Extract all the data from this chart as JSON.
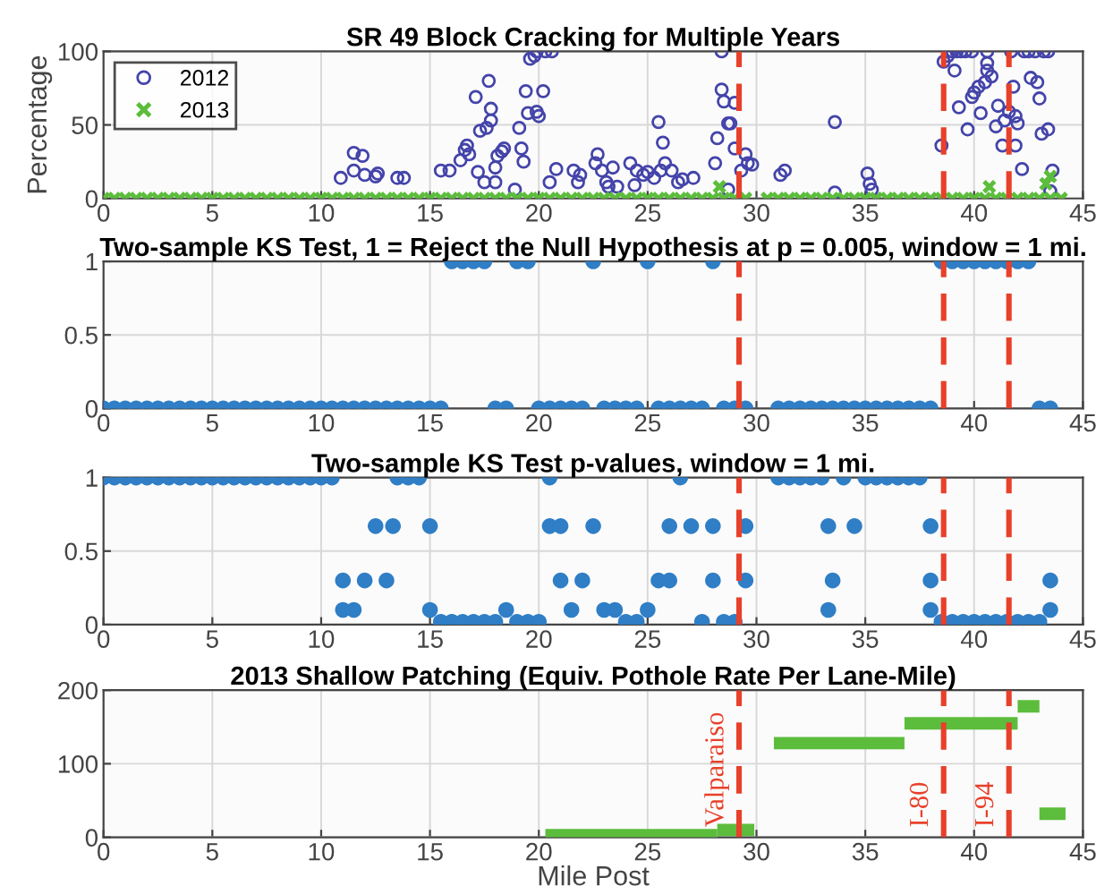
{
  "chart_data": [
    {
      "type": "scatter",
      "title": "SR 49 Block Cracking for Multiple Years",
      "ylabel": "Percentage",
      "xlim": [
        0,
        45
      ],
      "xticks": [
        0,
        5,
        10,
        15,
        20,
        25,
        30,
        35,
        40,
        45
      ],
      "ylim": [
        0,
        100
      ],
      "yticks": [
        0,
        50,
        100
      ],
      "grid": true,
      "legend": "top left",
      "ref_lines": [
        {
          "axis": "x",
          "value": 29.2,
          "color": "#e8402a",
          "line_style": "dashed"
        },
        {
          "axis": "x",
          "value": 38.6,
          "color": "#e8402a",
          "line_style": "dashed"
        },
        {
          "axis": "x",
          "value": 41.6,
          "color": "#e8402a",
          "line_style": "dashed"
        }
      ],
      "series": [
        {
          "name": "2012",
          "color": "#4444aa",
          "marker": "circle",
          "x": [
            10.9,
            11.5,
            11.9,
            11.5,
            12,
            12.5,
            12.6,
            13.5,
            13.8,
            15.5,
            15.9,
            16.4,
            16.6,
            16.7,
            16.8,
            17.1,
            17.3,
            17.6,
            17.7,
            17.8,
            17.8,
            17.5,
            17.2,
            18.0,
            18.1,
            18.3,
            18.4,
            18,
            18.9,
            19.1,
            19.2,
            19.3,
            19.4,
            19.5,
            19.6,
            19.8,
            19.9,
            20.2,
            20,
            19.9,
            20.3,
            20.6,
            20.5,
            20.8,
            21.6,
            21.8,
            21.9,
            22.6,
            22.7,
            22.9,
            23.1,
            23.2,
            23.4,
            23.6,
            24.2,
            24.4,
            24.5,
            24.8,
            25,
            25.3,
            25.5,
            25.6,
            25.8,
            25.7,
            26.1,
            26.4,
            26.6,
            27.1,
            28.1,
            28.2,
            28.4,
            28.4,
            28.5,
            28.7,
            28.8,
            28.7,
            29,
            29,
            29.3,
            29.5,
            29.6,
            29.8,
            31.1,
            31.3,
            33.6,
            33.6,
            35.1,
            35.2,
            35.3,
            38.5,
            38.6,
            38.8,
            39,
            39.1,
            39.2,
            39.4,
            39.6,
            39.9,
            39.3,
            39.7,
            39.9,
            40,
            40.2,
            40.3,
            40.5,
            40.6,
            40.6,
            40.6,
            40.8,
            41,
            41.1,
            41.3,
            41.4,
            41.6,
            41.7,
            41.8,
            41.9,
            41.9,
            42,
            42.2,
            42.3,
            42.5,
            42.8,
            42.6,
            42.9,
            43,
            43.2,
            43.4,
            43.1,
            43.4,
            43.5,
            43.6
          ],
          "values": [
            14,
            31,
            29,
            19,
            16,
            15,
            17,
            14,
            14,
            19,
            19,
            26,
            33,
            36,
            30,
            69,
            46,
            48,
            80,
            61,
            53,
            11,
            18,
            21,
            29,
            32,
            34,
            11,
            6,
            48,
            34,
            25,
            73,
            58,
            95,
            97,
            100,
            73,
            56,
            59,
            100,
            100,
            11,
            20,
            19,
            11,
            16,
            24,
            30,
            19,
            11,
            8,
            21,
            8,
            24,
            9,
            19,
            16,
            18,
            14,
            52,
            19,
            24,
            38,
            19,
            11,
            13,
            14,
            24,
            41,
            100,
            74,
            66,
            51,
            51,
            6,
            65,
            34,
            19,
            30,
            24,
            23,
            16,
            19,
            52,
            4,
            17,
            10,
            6,
            36,
            93,
            97,
            100,
            87,
            100,
            100,
            100,
            100,
            62,
            47,
            69,
            72,
            76,
            58,
            79,
            87,
            92,
            100,
            83,
            49,
            63,
            36,
            53,
            59,
            100,
            76,
            56,
            36,
            51,
            20,
            100,
            100,
            100,
            82,
            79,
            68,
            100,
            100,
            44,
            47,
            5,
            19
          ]
        },
        {
          "name": "2013",
          "color": "#5cbd3c",
          "marker": "cross",
          "x": [
            0,
            0.5,
            1,
            1.5,
            2,
            2.5,
            3,
            3.5,
            4,
            4.5,
            5,
            5.5,
            6,
            6.5,
            7,
            7.5,
            8,
            8.5,
            9,
            9.5,
            10,
            10.5,
            11,
            11.5,
            12,
            12.5,
            13,
            13.5,
            14,
            14.5,
            15,
            15.5,
            16,
            16.5,
            17,
            17.5,
            18,
            18.5,
            19,
            19.5,
            20,
            20.5,
            21,
            21.5,
            22,
            22.5,
            23,
            23.5,
            24,
            24.5,
            25,
            25.5,
            26,
            26.5,
            27,
            27.5,
            28,
            28.5,
            29,
            29.5,
            30.5,
            31,
            31.5,
            32,
            32.5,
            33,
            33.5,
            34,
            34.5,
            35,
            35.5,
            36,
            36.5,
            37,
            37.5,
            38,
            38.5,
            39,
            39.5,
            40,
            40.5,
            41,
            41.5,
            42,
            42.5,
            43,
            43.5,
            44,
            28.3,
            40.7,
            43.3,
            43.5
          ],
          "values": [
            0,
            0,
            0,
            0,
            0,
            0,
            0,
            0,
            0,
            0,
            0,
            0,
            0,
            0,
            0,
            0,
            0,
            0,
            0,
            0,
            0,
            0,
            0,
            0,
            0,
            0,
            0,
            0,
            0,
            0,
            0,
            0,
            0,
            0,
            0,
            0,
            0,
            0,
            0,
            0,
            0,
            0,
            0,
            0,
            0,
            0,
            0,
            0,
            0,
            0,
            0,
            0,
            0,
            0,
            0,
            0,
            0,
            0,
            0,
            0,
            0,
            0,
            0,
            0,
            0,
            0,
            0,
            0,
            0,
            0,
            0,
            0,
            0,
            0,
            0,
            0,
            0,
            0,
            0,
            0,
            0,
            0,
            0,
            0,
            0,
            0,
            0,
            0,
            8,
            8,
            10,
            15
          ]
        }
      ]
    },
    {
      "type": "scatter",
      "title": "Two-sample KS Test, 1 = Reject the Null Hypothesis at p = 0.005, window = 1 mi.",
      "xlim": [
        0,
        45
      ],
      "xticks": [
        0,
        5,
        10,
        15,
        20,
        25,
        30,
        35,
        40,
        45
      ],
      "ylim": [
        0,
        1
      ],
      "yticks": [
        0,
        0.5,
        1
      ],
      "grid": true,
      "ref_lines": [
        {
          "axis": "x",
          "value": 29.2,
          "color": "#e8402a",
          "line_style": "dashed"
        },
        {
          "axis": "x",
          "value": 38.6,
          "color": "#e8402a",
          "line_style": "dashed"
        },
        {
          "axis": "x",
          "value": 41.6,
          "color": "#e8402a",
          "line_style": "dashed"
        }
      ],
      "series": [
        {
          "color": "#2f7ec6",
          "marker": "circle",
          "x": [
            0,
            0.5,
            1,
            1.5,
            2,
            2.5,
            3,
            3.5,
            4,
            4.5,
            5,
            5.5,
            6,
            6.5,
            7,
            7.5,
            8,
            8.5,
            9,
            9.5,
            10,
            10.5,
            11,
            11.5,
            12,
            12.5,
            13,
            13.5,
            14,
            14.5,
            15,
            15.5,
            16,
            16.5,
            17,
            17.5,
            18,
            18.5,
            19,
            19.5,
            20,
            20.5,
            21,
            21.5,
            22,
            22.5,
            23,
            23.5,
            24,
            24.5,
            25,
            25.5,
            26,
            26.5,
            27,
            27.5,
            28,
            28.5,
            29,
            29.5,
            31,
            31.5,
            32,
            32.5,
            33,
            33.5,
            34,
            34.5,
            35,
            35.5,
            36,
            36.5,
            37,
            37.5,
            38,
            38.5,
            39,
            39.5,
            40,
            40.5,
            41,
            41.5,
            42,
            42.5,
            43,
            43.5
          ],
          "values": [
            0,
            0,
            0,
            0,
            0,
            0,
            0,
            0,
            0,
            0,
            0,
            0,
            0,
            0,
            0,
            0,
            0,
            0,
            0,
            0,
            0,
            0,
            0,
            0,
            0,
            0,
            0,
            0,
            0,
            0,
            0,
            0,
            1,
            1,
            1,
            1,
            0,
            0,
            1,
            1,
            0,
            0,
            0,
            0,
            0,
            1,
            0,
            0,
            0,
            0,
            1,
            0,
            0,
            0,
            0,
            0,
            1,
            0,
            0,
            0,
            0,
            0,
            0,
            0,
            0,
            0,
            0,
            0,
            0,
            0,
            0,
            0,
            0,
            0,
            0,
            1,
            1,
            1,
            1,
            1,
            1,
            1,
            1,
            1,
            0,
            0
          ]
        }
      ]
    },
    {
      "type": "scatter",
      "title": "Two-sample KS Test p-values, window = 1 mi.",
      "xlim": [
        0,
        45
      ],
      "xticks": [
        0,
        5,
        10,
        15,
        20,
        25,
        30,
        35,
        40,
        45
      ],
      "ylim": [
        0,
        1
      ],
      "yticks": [
        0,
        0.5,
        1
      ],
      "grid": true,
      "ref_lines": [
        {
          "axis": "x",
          "value": 29.2,
          "color": "#e8402a",
          "line_style": "dashed"
        },
        {
          "axis": "x",
          "value": 38.6,
          "color": "#e8402a",
          "line_style": "dashed"
        },
        {
          "axis": "x",
          "value": 41.6,
          "color": "#e8402a",
          "line_style": "dashed"
        }
      ],
      "series": [
        {
          "color": "#2f7ec6",
          "marker": "circle",
          "x": [
            0,
            0.5,
            1,
            1.5,
            2,
            2.5,
            3,
            3.5,
            4,
            4.5,
            5,
            5.5,
            6,
            6.5,
            7,
            7.5,
            8,
            8.5,
            9,
            9.5,
            10,
            10.5,
            11,
            11.5,
            12,
            12.5,
            13,
            13.5,
            14,
            14.5,
            15,
            15.5,
            16,
            16.5,
            17,
            17.5,
            18,
            18.5,
            19,
            19.5,
            20,
            20.5,
            21,
            21.5,
            22,
            22.5,
            23,
            23.5,
            24,
            24.5,
            25,
            25.5,
            26,
            26.5,
            27,
            27.5,
            28,
            28.5,
            29,
            29.5,
            31,
            31.5,
            32,
            32.5,
            33,
            33.5,
            34,
            34.5,
            35,
            35.5,
            36,
            36.5,
            37,
            37.5,
            38,
            38.5,
            39,
            39.5,
            40,
            40.5,
            41,
            41.5,
            42,
            42.5,
            43,
            43.5,
            11,
            13.3,
            15,
            20.5,
            21,
            26,
            28,
            29.5,
            33.3,
            33.3,
            38,
            38,
            43.5
          ],
          "values": [
            1,
            1,
            1,
            1,
            1,
            1,
            1,
            1,
            1,
            1,
            1,
            1,
            1,
            1,
            1,
            1,
            1,
            1,
            1,
            1,
            1,
            1,
            0.3,
            0.1,
            0.3,
            0.67,
            0.3,
            1,
            1,
            1,
            0.67,
            0.02,
            0.02,
            0.02,
            0.02,
            0.02,
            0.02,
            0.1,
            0.02,
            0.02,
            0.02,
            1,
            0.3,
            0.1,
            0.3,
            0.67,
            0.1,
            0.1,
            0.02,
            0.02,
            0.1,
            0.3,
            0.67,
            1,
            0.67,
            0.02,
            0.3,
            0.02,
            0.02,
            0.67,
            1,
            1,
            1,
            1,
            1,
            0.3,
            1,
            0.67,
            1,
            1,
            1,
            1,
            1,
            1,
            0.67,
            0.02,
            0.02,
            0.02,
            0.02,
            0.02,
            0.02,
            0.02,
            0.02,
            0.02,
            0.02,
            0.3,
            0.1,
            0.67,
            0.1,
            0.67,
            0.67,
            0.3,
            0.67,
            0.3,
            0.67,
            0.1,
            0.3,
            0.1,
            0.1
          ]
        }
      ]
    },
    {
      "type": "line",
      "title": "2013 Shallow Patching (Equiv. Pothole Rate Per Lane-Mile)",
      "xlabel": "Mile Post",
      "xlim": [
        0,
        45
      ],
      "xticks": [
        0,
        5,
        10,
        15,
        20,
        25,
        30,
        35,
        40,
        45
      ],
      "ylim": [
        0,
        200
      ],
      "yticks": [
        0,
        100,
        200
      ],
      "grid": true,
      "ref_lines": [
        {
          "axis": "x",
          "value": 29.2,
          "label": "Valparaiso",
          "color": "#e8402a",
          "line_style": "dashed"
        },
        {
          "axis": "x",
          "value": 38.6,
          "label": "I-80",
          "color": "#e8402a",
          "line_style": "dashed"
        },
        {
          "axis": "x",
          "value": 41.6,
          "label": "I-94",
          "color": "#e8402a",
          "line_style": "dashed"
        }
      ],
      "series": [
        {
          "color": "#5cbd3c",
          "x": [
            20.3,
            28.2
          ],
          "values": [
            3,
            3
          ]
        },
        {
          "color": "#5cbd3c",
          "x": [
            28.2,
            29.9
          ],
          "values": [
            10,
            10
          ]
        },
        {
          "color": "#5cbd3c",
          "x": [
            30.8,
            36.8
          ],
          "values": [
            128,
            128
          ]
        },
        {
          "color": "#5cbd3c",
          "x": [
            36.8,
            42.0
          ],
          "values": [
            155,
            155
          ]
        },
        {
          "color": "#5cbd3c",
          "x": [
            42.0,
            43.0
          ],
          "values": [
            178,
            178
          ]
        },
        {
          "color": "#5cbd3c",
          "x": [
            43.0,
            44.2
          ],
          "values": [
            32,
            32
          ]
        }
      ]
    }
  ]
}
